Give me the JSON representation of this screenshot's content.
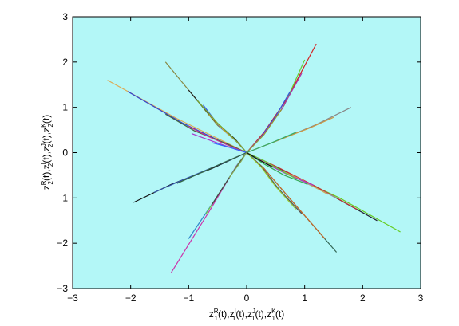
{
  "chart_data": {
    "type": "line",
    "title": "",
    "xlabel": "z1R(t),z1I(t),z1J(t),z1K(t)",
    "ylabel": "z2R(t),z2I(t),z2J(t),z2K(t)",
    "xlim": [
      -3,
      3
    ],
    "ylim": [
      -3,
      3
    ],
    "x_ticks": [
      -3,
      -2,
      -1,
      0,
      1,
      2,
      3
    ],
    "y_ticks": [
      -3,
      -2,
      -1,
      0,
      1,
      2,
      3
    ],
    "x_tick_labels": [
      "−3",
      "−2",
      "−1",
      "0",
      "1",
      "2",
      "3"
    ],
    "y_tick_labels": [
      "−3",
      "−2",
      "−1",
      "0",
      "1",
      "2",
      "3"
    ],
    "xlabel_parts": [
      {
        "text": "z",
        "sup": "R",
        "sub": "1",
        "tail": "(t),"
      },
      {
        "text": "z",
        "sup": "I",
        "sub": "1",
        "tail": "(t),"
      },
      {
        "text": "z",
        "sup": "J",
        "sub": "1",
        "tail": "(t),"
      },
      {
        "text": "z",
        "sup": "K",
        "sub": "1",
        "tail": "(t)"
      }
    ],
    "ylabel_parts": [
      {
        "text": "z",
        "sup": "R",
        "sub": "2",
        "tail": "(t),"
      },
      {
        "text": "z",
        "sup": "I",
        "sub": "2",
        "tail": "(t),"
      },
      {
        "text": "z",
        "sup": "J",
        "sub": "2",
        "tail": "(t),"
      },
      {
        "text": "z",
        "sup": "K",
        "sub": "2",
        "tail": "(t)"
      }
    ],
    "grid": false,
    "legend": "none",
    "background_color": "#b3f7f7",
    "series": [
      {
        "color": "#d42020",
        "x": [
          0,
          0.3,
          0.7,
          1.2
        ],
        "y": [
          0,
          0.45,
          1.2,
          2.4
        ]
      },
      {
        "color": "#66cc33",
        "x": [
          0,
          0.3,
          0.65,
          1.0
        ],
        "y": [
          0,
          0.4,
          1.05,
          2.05
        ]
      },
      {
        "color": "#3355dd",
        "x": [
          0,
          0.25,
          0.5,
          0.75
        ],
        "y": [
          0,
          0.35,
          0.8,
          1.35
        ]
      },
      {
        "color": "#aa33aa",
        "x": [
          0,
          0.28,
          0.6,
          0.95
        ],
        "y": [
          0,
          0.38,
          0.95,
          1.75
        ]
      },
      {
        "color": "#999933",
        "x": [
          0,
          0.3,
          0.6
        ],
        "y": [
          0,
          0.4,
          0.95
        ]
      },
      {
        "color": "#888888",
        "x": [
          0,
          0.6,
          1.2,
          1.8
        ],
        "y": [
          0,
          0.3,
          0.62,
          1.0
        ]
      },
      {
        "color": "#cc9944",
        "x": [
          0,
          0.5,
          1.1,
          1.5
        ],
        "y": [
          0,
          0.25,
          0.55,
          0.78
        ]
      },
      {
        "color": "#33aa66",
        "x": [
          0,
          0.4,
          0.85
        ],
        "y": [
          0,
          0.2,
          0.45
        ]
      },
      {
        "color": "#ddaa55",
        "x": [
          0,
          -0.4,
          -1.2,
          -2.4
        ],
        "y": [
          0,
          0.25,
          0.75,
          1.6
        ]
      },
      {
        "color": "#3344cc",
        "x": [
          0,
          -0.4,
          -1.1,
          -2.05
        ],
        "y": [
          0,
          0.22,
          0.65,
          1.35
        ]
      },
      {
        "color": "#446644",
        "x": [
          0,
          -0.35,
          -0.9,
          -1.4
        ],
        "y": [
          0,
          0.2,
          0.48,
          0.85
        ]
      },
      {
        "color": "#cc3388",
        "x": [
          0,
          -0.3,
          -0.7,
          -1.0
        ],
        "y": [
          0,
          0.15,
          0.38,
          0.58
        ]
      },
      {
        "color": "#888844",
        "x": [
          0,
          -0.2,
          -0.5,
          -1.4
        ],
        "y": [
          0,
          0.3,
          0.6,
          2.0
        ]
      },
      {
        "color": "#222222",
        "x": [
          0,
          -0.2,
          -0.55,
          -1.0
        ],
        "y": [
          0,
          0.3,
          0.7,
          1.38
        ]
      },
      {
        "color": "#3355ee",
        "x": [
          0,
          -0.18,
          -0.45,
          -0.75
        ],
        "y": [
          0,
          0.25,
          0.55,
          1.05
        ]
      },
      {
        "color": "#ddaa33",
        "x": [
          0,
          -0.15,
          -0.4,
          -0.65
        ],
        "y": [
          0,
          0.22,
          0.5,
          0.85
        ]
      },
      {
        "color": "#77aa33",
        "x": [
          0,
          -0.2,
          -0.5,
          -0.85
        ],
        "y": [
          0,
          0.28,
          0.65,
          1.15
        ]
      },
      {
        "color": "#aa33cc",
        "x": [
          0,
          -0.3,
          -0.65,
          -0.95
        ],
        "y": [
          0,
          0.12,
          0.28,
          0.42
        ]
      },
      {
        "color": "#3366ff",
        "x": [
          0,
          -0.25,
          -0.6
        ],
        "y": [
          0,
          0.1,
          0.22
        ]
      },
      {
        "color": "#111111",
        "x": [
          0,
          -0.6,
          -1.3,
          -1.95
        ],
        "y": [
          0,
          -0.35,
          -0.7,
          -1.1
        ]
      },
      {
        "color": "#3355aa",
        "x": [
          0,
          -0.5,
          -1.1,
          -1.6
        ],
        "y": [
          0,
          -0.28,
          -0.6,
          -0.88
        ]
      },
      {
        "color": "#336644",
        "x": [
          0,
          -0.4,
          -0.85,
          -1.2
        ],
        "y": [
          0,
          -0.22,
          -0.48,
          -0.68
        ]
      },
      {
        "color": "#cc33aa",
        "x": [
          0,
          -0.18,
          -0.6,
          -1.3
        ],
        "y": [
          0,
          -0.3,
          -1.2,
          -2.65
        ]
      },
      {
        "color": "#3388cc",
        "x": [
          0,
          -0.15,
          -0.5,
          -1.0
        ],
        "y": [
          0,
          -0.25,
          -0.95,
          -1.9
        ]
      },
      {
        "color": "#77cc44",
        "x": [
          0,
          -0.12,
          -0.35,
          -0.7
        ],
        "y": [
          0,
          -0.2,
          -0.65,
          -1.35
        ]
      },
      {
        "color": "#444444",
        "x": [
          0,
          -0.1,
          -0.3,
          -0.6
        ],
        "y": [
          0,
          -0.18,
          -0.55,
          -1.15
        ]
      },
      {
        "color": "#88aa55",
        "x": [
          0,
          -0.1,
          -0.3
        ],
        "y": [
          0,
          -0.2,
          -0.55
        ]
      },
      {
        "color": "#66cc22",
        "x": [
          0,
          0.6,
          1.6,
          2.65
        ],
        "y": [
          0,
          -0.4,
          -1.0,
          -1.75
        ]
      },
      {
        "color": "#222233",
        "x": [
          0,
          0.55,
          1.4,
          2.25
        ],
        "y": [
          0,
          -0.35,
          -0.9,
          -1.5
        ]
      },
      {
        "color": "#cc3333",
        "x": [
          0,
          0.5,
          1.2,
          1.9
        ],
        "y": [
          0,
          -0.3,
          -0.75,
          -1.25
        ]
      },
      {
        "color": "#999999",
        "x": [
          0,
          0.45,
          1.1,
          1.55
        ],
        "y": [
          0,
          -0.3,
          -0.72,
          -1.0
        ]
      },
      {
        "color": "#ccaa55",
        "x": [
          0,
          0.4,
          0.95,
          1.4
        ],
        "y": [
          0,
          -0.28,
          -0.6,
          -0.92
        ]
      },
      {
        "color": "#336655",
        "x": [
          0,
          0.3,
          0.7,
          1.55
        ],
        "y": [
          0,
          -0.35,
          -0.95,
          -2.2
        ]
      },
      {
        "color": "#cc6622",
        "x": [
          0,
          0.3,
          0.7,
          1.35
        ],
        "y": [
          0,
          -0.35,
          -0.95,
          -1.9
        ]
      },
      {
        "color": "#555555",
        "x": [
          0,
          0.25,
          0.55,
          0.95
        ],
        "y": [
          0,
          -0.3,
          -0.8,
          -1.35
        ]
      },
      {
        "color": "#99cc33",
        "x": [
          0,
          0.25,
          0.5,
          0.85
        ],
        "y": [
          0,
          -0.32,
          -0.75,
          -1.25
        ]
      },
      {
        "color": "#33aa55",
        "x": [
          0,
          0.3,
          0.65,
          1.05
        ],
        "y": [
          0,
          -0.25,
          -0.5,
          -0.7
        ]
      },
      {
        "color": "#aa33cc",
        "x": [
          0,
          0.35,
          0.7,
          1.15
        ],
        "y": [
          0,
          -0.25,
          -0.48,
          -0.72
        ]
      },
      {
        "color": "#66cc44",
        "x": [
          0,
          0.3,
          0.6,
          0.85
        ],
        "y": [
          0,
          -0.18,
          -0.4,
          -0.58
        ]
      },
      {
        "color": "#111111",
        "x": [
          0,
          0.2,
          0.45
        ],
        "y": [
          0,
          -0.15,
          -0.32
        ]
      }
    ]
  }
}
